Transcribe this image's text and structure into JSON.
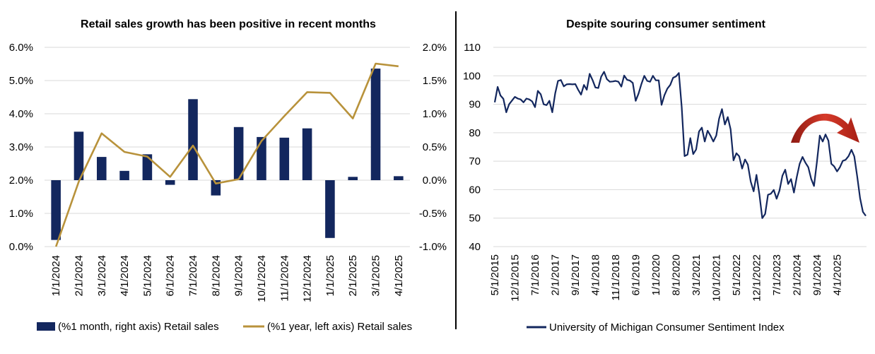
{
  "chart_data": [
    {
      "type": "bar",
      "title": "Retail sales growth has been positive in recent months",
      "categories": [
        "1/1/2024",
        "2/1/2024",
        "3/1/2024",
        "4/1/2024",
        "5/1/2024",
        "6/1/2024",
        "7/1/2024",
        "8/1/2024",
        "9/1/2024",
        "10/1/2024",
        "11/1/2024",
        "12/1/2024",
        "1/1/2025",
        "2/1/2025",
        "3/1/2025",
        "4/1/2025"
      ],
      "left_axis": {
        "ylim": [
          0,
          6
        ],
        "ticks": [
          "0.0%",
          "1.0%",
          "2.0%",
          "3.0%",
          "4.0%",
          "5.0%",
          "6.0%"
        ]
      },
      "right_axis": {
        "ylim": [
          -1,
          2
        ],
        "ticks": [
          "-1.0%",
          "-0.5%",
          "0.0%",
          "0.5%",
          "1.0%",
          "1.5%",
          "2.0%"
        ]
      },
      "series": [
        {
          "name": "(%1 month, right axis) Retail sales",
          "kind": "bar",
          "axis": "right",
          "color": "#13275e",
          "values": [
            -0.9,
            0.73,
            0.35,
            0.14,
            0.39,
            -0.07,
            1.22,
            -0.23,
            0.8,
            0.65,
            0.64,
            0.78,
            -0.87,
            0.05,
            1.68,
            0.06
          ]
        },
        {
          "name": "(%1 year, left axis) Retail sales",
          "kind": "line",
          "axis": "left",
          "color": "#b8923b",
          "values": [
            0.0,
            1.96,
            3.41,
            2.85,
            2.71,
            2.1,
            3.04,
            1.9,
            2.03,
            3.18,
            3.93,
            4.65,
            4.63,
            3.86,
            5.51,
            5.43
          ]
        }
      ]
    },
    {
      "type": "line",
      "title": "Despite souring consumer sentiment",
      "ylim": [
        40,
        110
      ],
      "yticks": [
        40,
        50,
        60,
        70,
        80,
        90,
        100,
        110
      ],
      "xticks": [
        "5/1/2015",
        "12/1/2015",
        "7/1/2016",
        "2/1/2017",
        "9/1/2017",
        "4/1/2018",
        "11/1/2018",
        "6/1/2019",
        "1/1/2020",
        "8/1/2020",
        "3/1/2021",
        "10/1/2021",
        "5/1/2022",
        "12/1/2022",
        "7/1/2023",
        "2/1/2024",
        "9/1/2024",
        "4/1/2025"
      ],
      "series": [
        {
          "name": "University of Michigan Consumer Sentiment Index",
          "color": "#13275e",
          "values": [
            90.7,
            96.1,
            93.1,
            91.9,
            87.2,
            90.0,
            91.3,
            92.6,
            92.0,
            91.7,
            90.7,
            92.0,
            91.7,
            91.0,
            89.0,
            94.7,
            93.5,
            90.0,
            89.7,
            91.2,
            87.2,
            93.8,
            98.2,
            98.5,
            96.3,
            97.0,
            97.1,
            97.0,
            97.1,
            95.1,
            93.4,
            96.8,
            95.1,
            100.7,
            98.5,
            95.9,
            95.7,
            99.7,
            101.4,
            98.8,
            97.9,
            98.0,
            98.2,
            97.9,
            96.2,
            100.1,
            98.6,
            98.3,
            97.5,
            91.2,
            93.8,
            97.2,
            100.0,
            98.2,
            97.9,
            100.0,
            98.4,
            98.4,
            89.8,
            93.2,
            95.5,
            96.8,
            99.3,
            99.8,
            101.0,
            89.1,
            71.8,
            72.3,
            78.1,
            72.5,
            74.1,
            80.4,
            81.8,
            76.9,
            80.7,
            79.0,
            76.9,
            79.0,
            84.9,
            88.3,
            82.9,
            85.5,
            81.2,
            70.3,
            72.8,
            71.7,
            67.4,
            70.6,
            68.8,
            62.8,
            59.4,
            65.2,
            58.4,
            50.0,
            51.5,
            58.2,
            58.6,
            59.9,
            56.8,
            59.7,
            64.9,
            67.0,
            62.0,
            63.7,
            59.0,
            64.4,
            69.1,
            71.5,
            69.5,
            67.9,
            63.8,
            61.3,
            69.7,
            79.0,
            76.9,
            79.4,
            77.2,
            69.1,
            68.2,
            66.4,
            67.9,
            70.1,
            70.5,
            71.8,
            74.0,
            71.7,
            64.7,
            57.0,
            52.2,
            50.8
          ]
        }
      ]
    }
  ],
  "colors": {
    "navy": "#13275e",
    "gold": "#b8923b",
    "grid": "#d9d9d9",
    "arrow_red": "#c0251b"
  }
}
